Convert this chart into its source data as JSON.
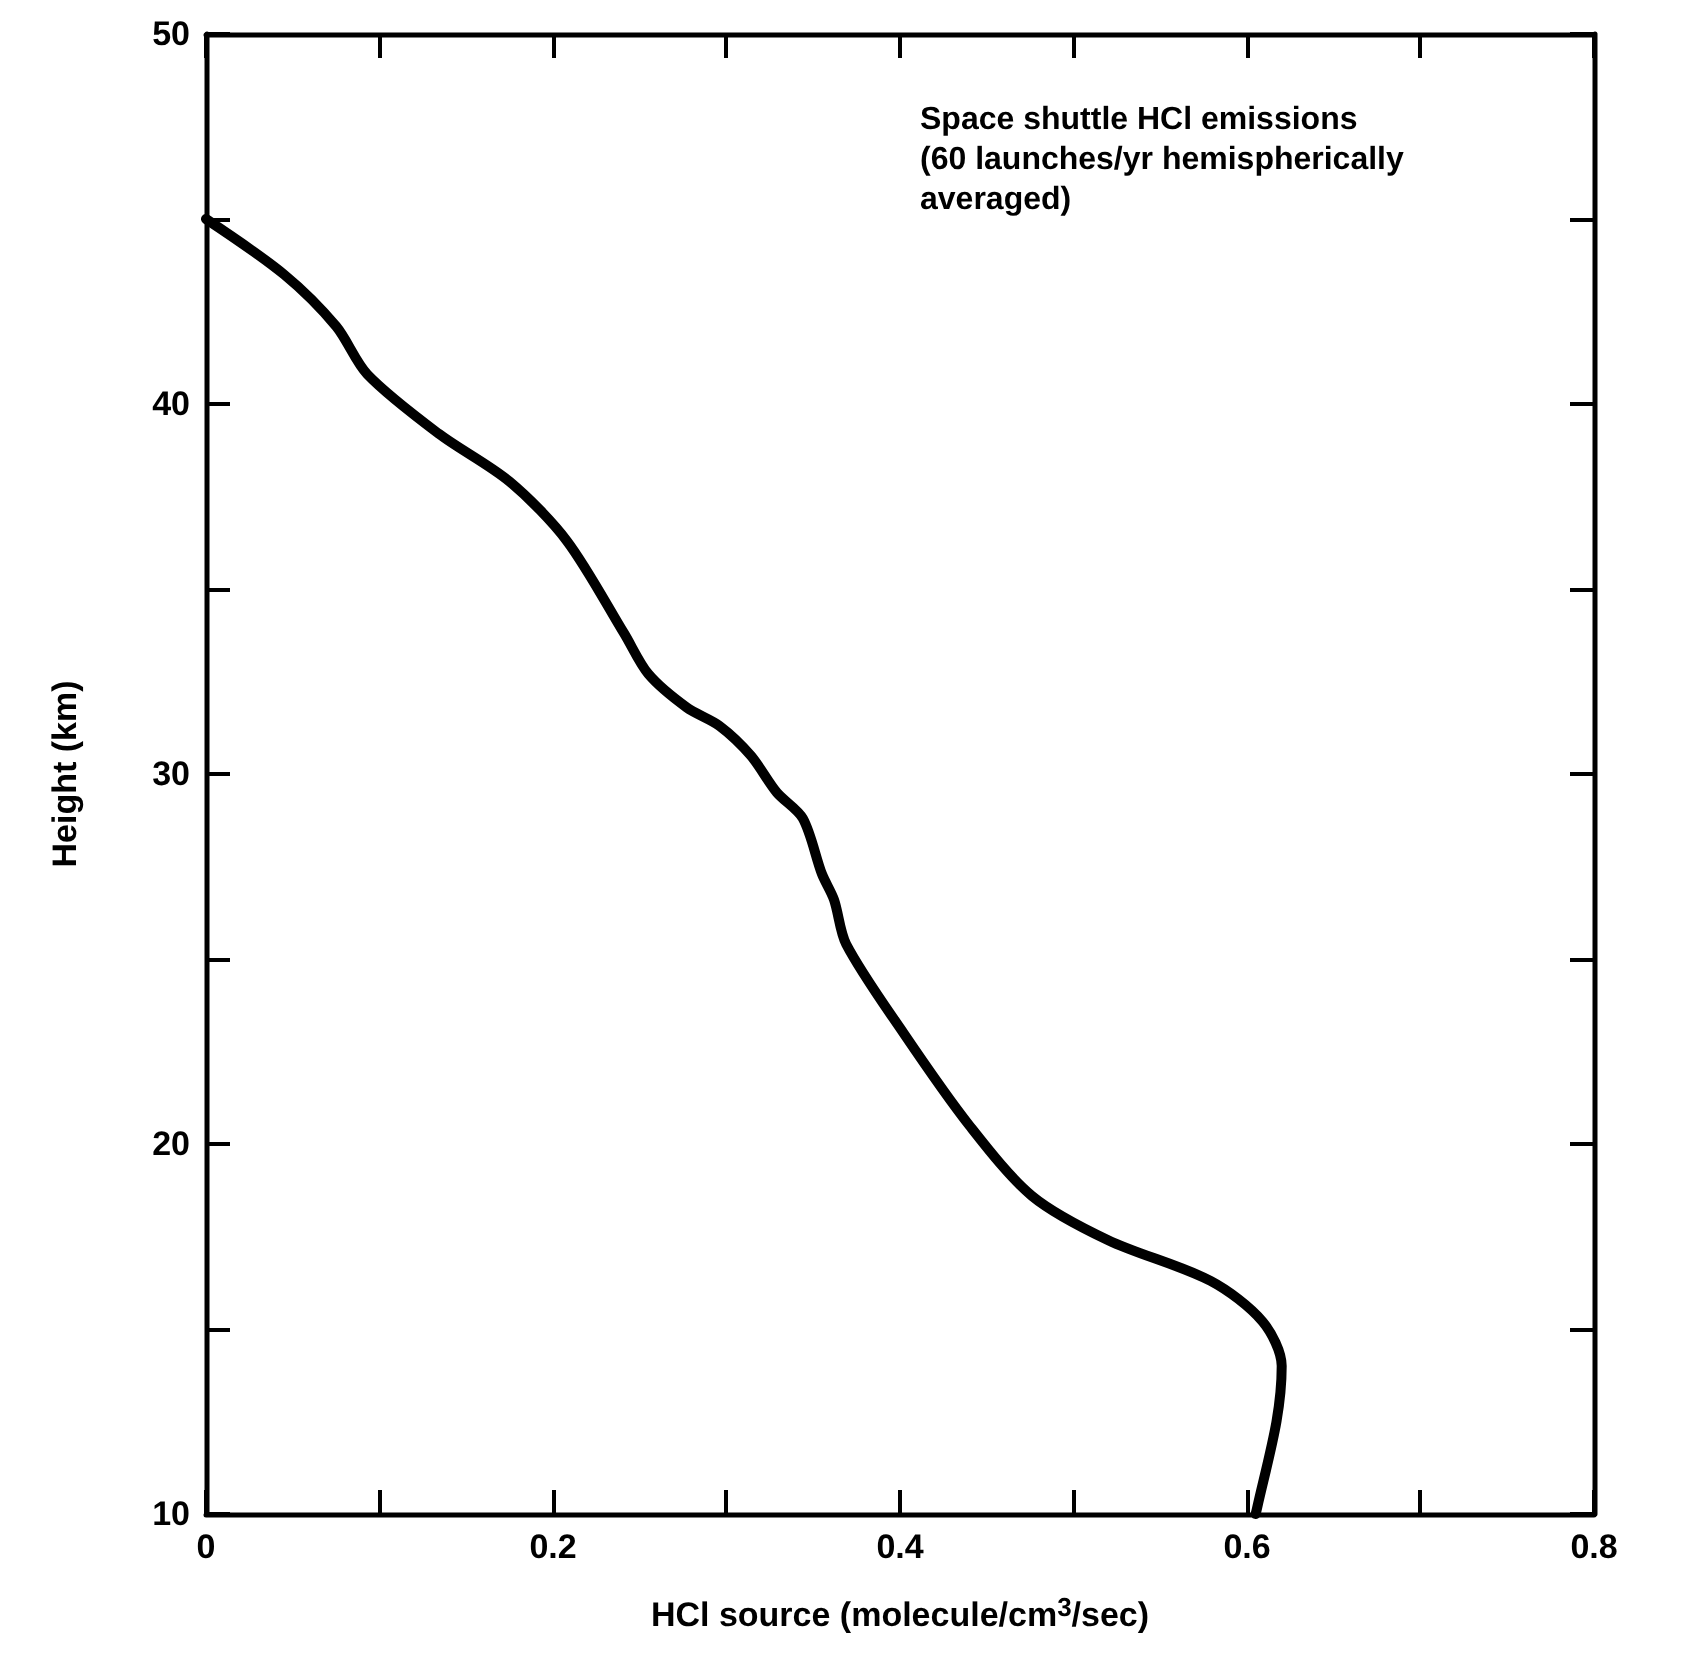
{
  "chart_data": {
    "type": "line",
    "xlabel": "HCl source (molecule/cm$^{3}$/sec)",
    "ylabel": "Height (km)",
    "annotations": [
      "Space shuttle HCl emissions\n(60 launches/yr hemispherically\naveraged)"
    ],
    "series": [
      {
        "color": "#000000",
        "x": [
          0,
          0.045,
          0.075,
          0.093,
          0.134,
          0.175,
          0.208,
          0.241,
          0.255,
          0.277,
          0.296,
          0.314,
          0.329,
          0.344,
          0.355,
          0.362,
          0.369,
          0.402,
          0.44,
          0.476,
          0.52,
          0.579,
          0.609,
          0.62,
          0.617,
          0.606,
          0.605
        ],
        "values": [
          45,
          43.5,
          42.1,
          40.8,
          39.2,
          37.9,
          36.3,
          33.8,
          32.7,
          31.8,
          31.3,
          30.5,
          29.5,
          28.8,
          27.3,
          26.6,
          25.4,
          23.0,
          20.5,
          18.6,
          17.4,
          16.3,
          15.2,
          14.0,
          12.5,
          10.2,
          10
        ]
      }
    ],
    "xlim": [
      0,
      0.8
    ],
    "xticks": [
      0,
      {
        "value": 0.1,
        "label": null
      },
      0.2,
      {
        "value": 0.3,
        "label": null
      },
      0.4,
      {
        "value": 0.5,
        "label": null
      },
      0.6,
      {
        "value": 0.7,
        "label": null
      },
      0.8
    ],
    "ylim": [
      10,
      50
    ],
    "yticks": [
      10,
      {
        "value": 15,
        "label": null
      },
      20,
      {
        "value": 25,
        "label": null
      },
      30,
      {
        "value": 35,
        "label": null
      },
      40,
      {
        "value": 45,
        "label": null
      },
      50
    ],
    "grid": false,
    "marker": "none",
    "line_style": "solid"
  }
}
